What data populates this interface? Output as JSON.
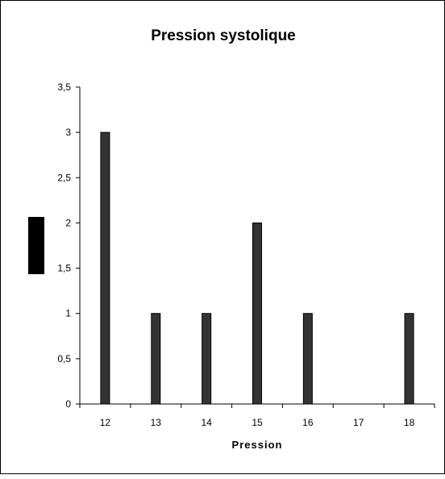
{
  "chart_data": {
    "type": "bar",
    "title": "Pression systolique",
    "xlabel": "Pression",
    "ylabel": "",
    "categories": [
      "12",
      "13",
      "14",
      "15",
      "16",
      "17",
      "18"
    ],
    "values": [
      3,
      1,
      1,
      2,
      1,
      0,
      1
    ],
    "ylim": [
      0,
      3.5
    ],
    "yticks": [
      "0",
      "0,5",
      "1",
      "1,5",
      "2",
      "2,5",
      "3",
      "3,5"
    ],
    "grid": false,
    "legend": "none",
    "colors": {
      "bar_fill": "#333333",
      "bar_stroke": "#000000",
      "legend_swatch": "#000000"
    }
  }
}
